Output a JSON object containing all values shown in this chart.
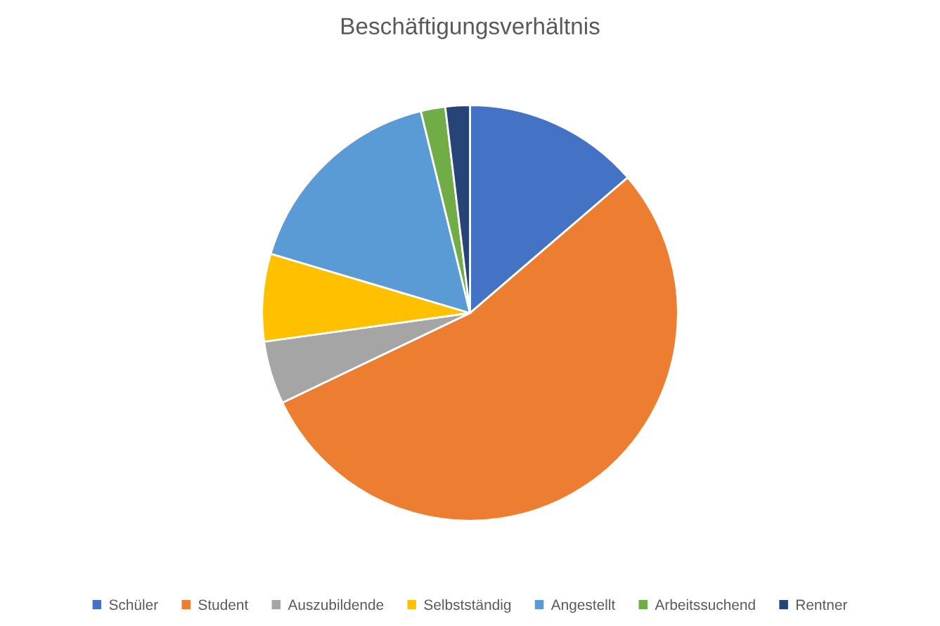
{
  "chart_data": {
    "type": "pie",
    "title": "Beschäftigungsverhältnis",
    "categories": [
      "Schüler",
      "Student",
      "Auszubildende",
      "Selbstständig",
      "Angestellt",
      "Arbeitssuchend",
      "Rentner"
    ],
    "values": [
      13.7,
      54.2,
      4.9,
      6.8,
      16.6,
      1.9,
      1.9
    ],
    "colors": [
      "#4472c4",
      "#ed7d31",
      "#a5a5a5",
      "#ffc000",
      "#5b9bd5",
      "#70ad47",
      "#264478"
    ],
    "legend": "bottom"
  }
}
